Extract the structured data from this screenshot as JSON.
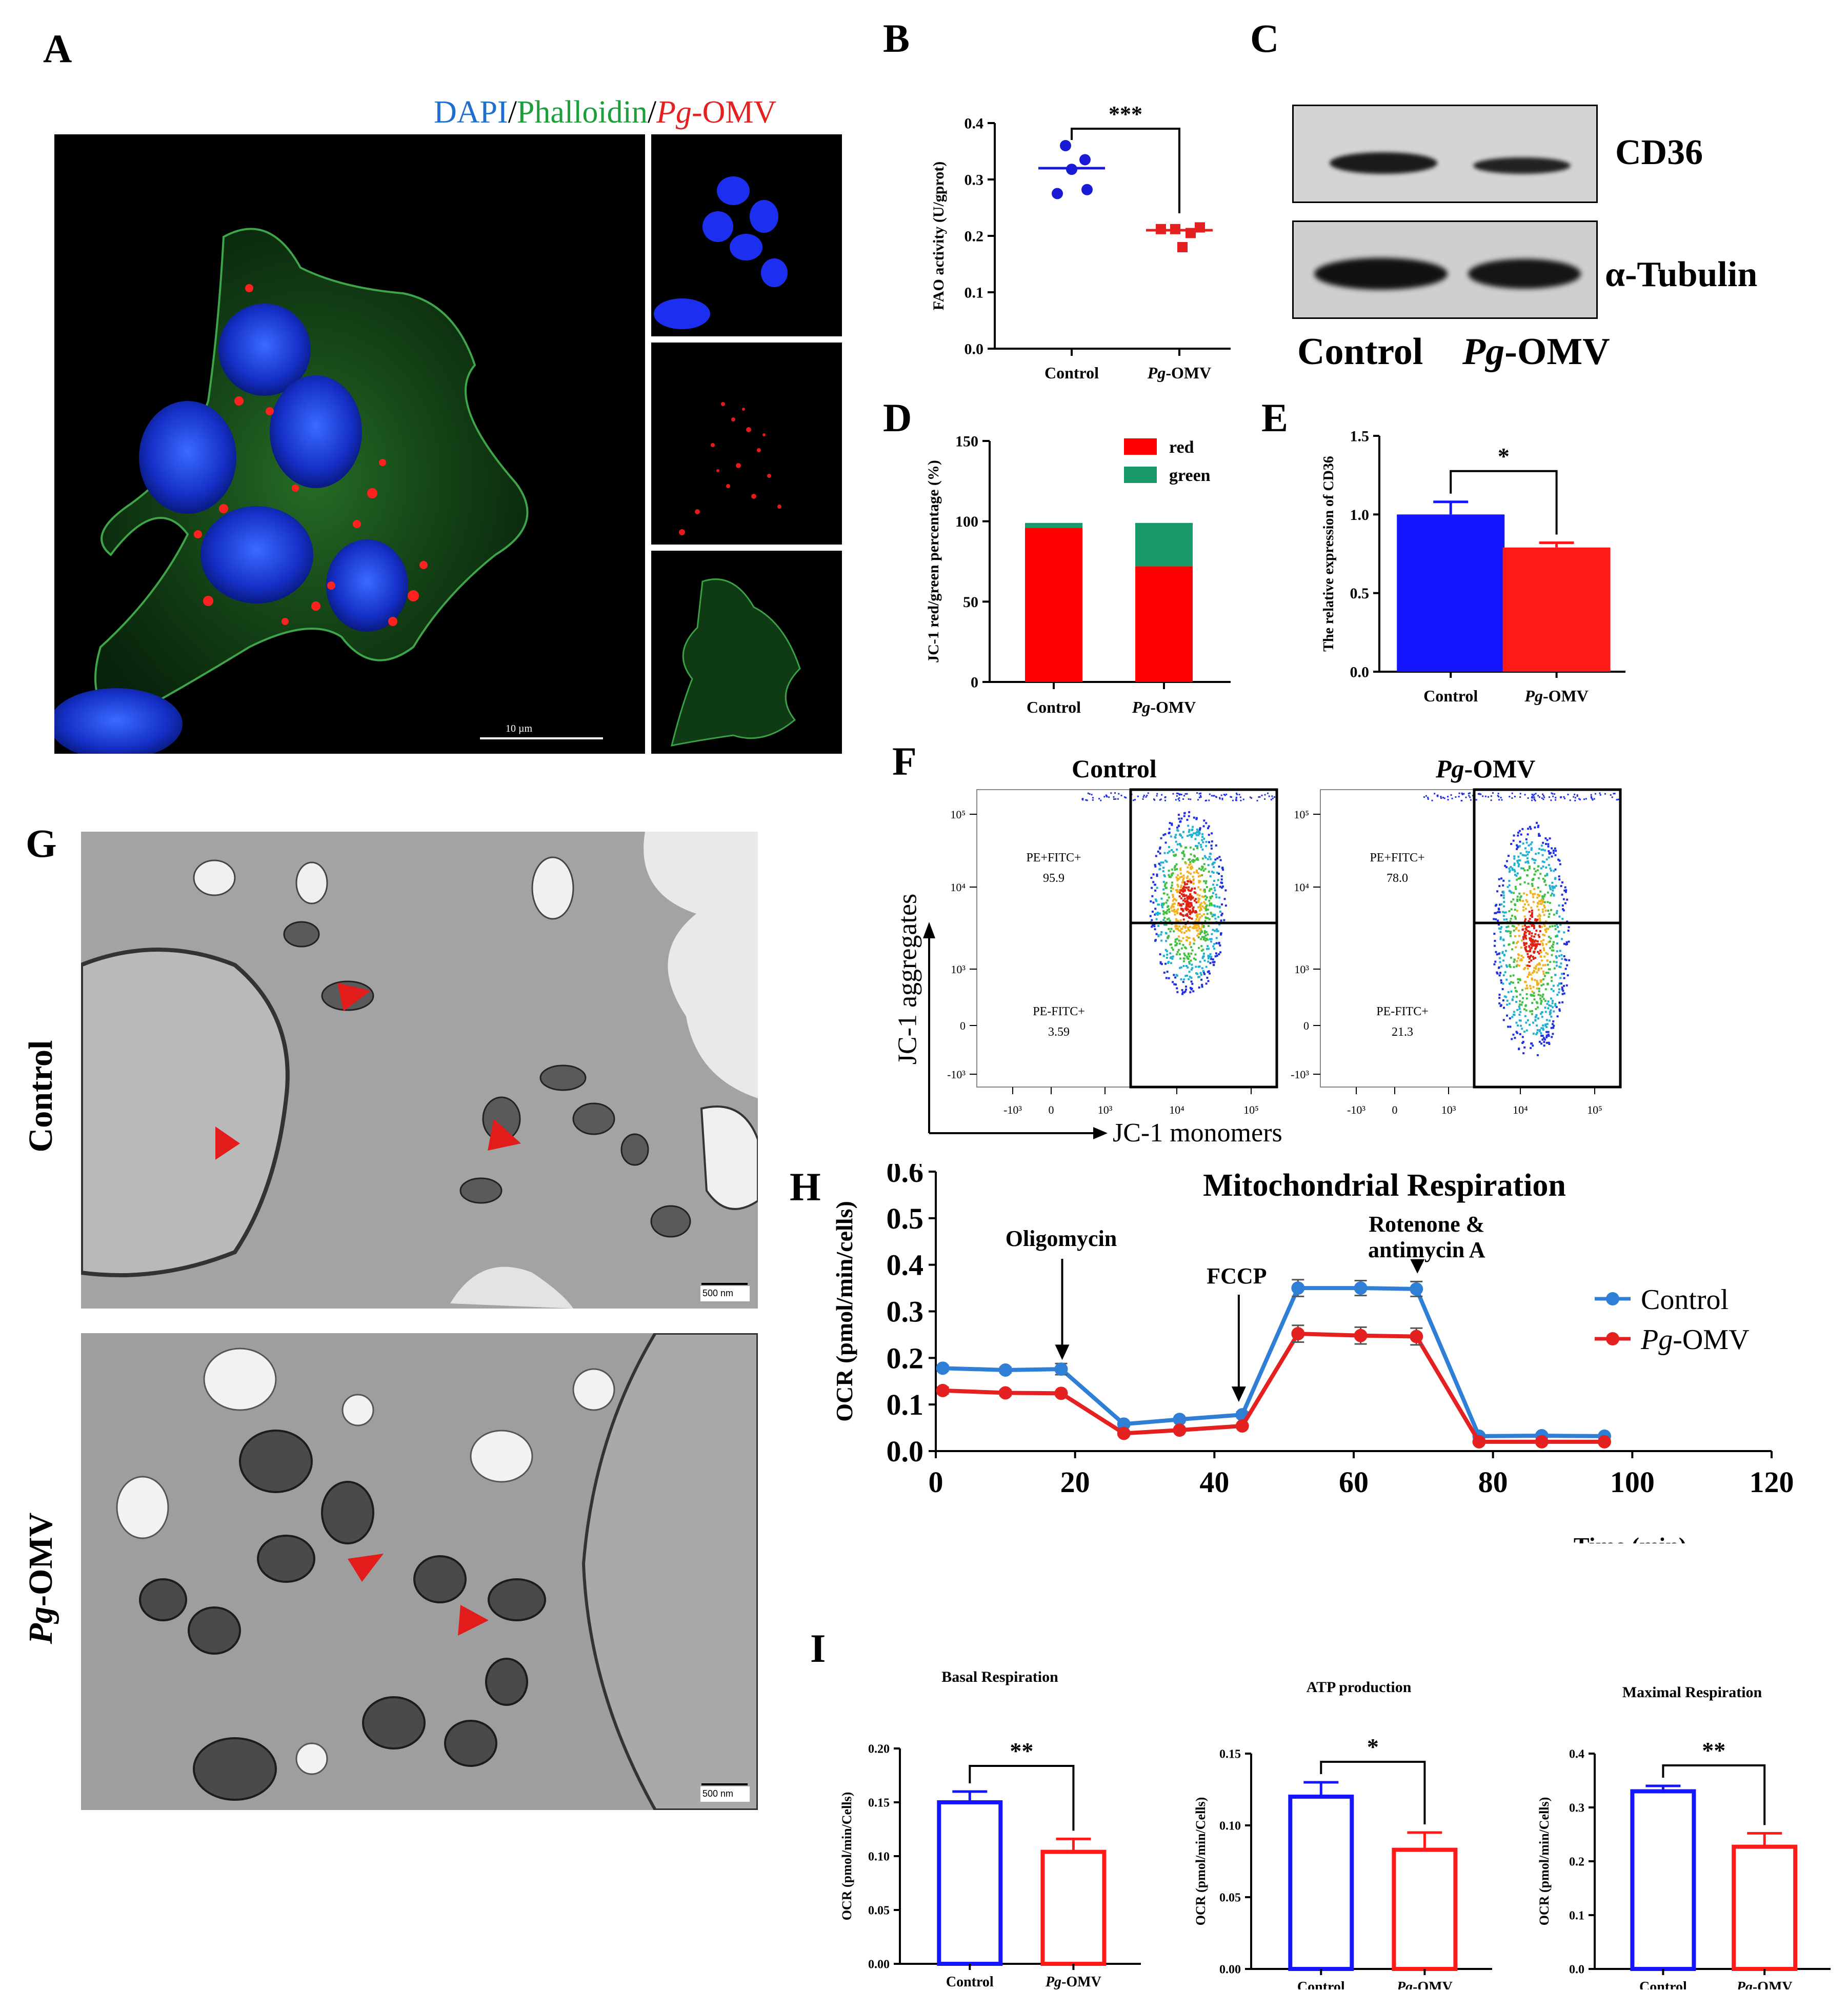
{
  "panels": {
    "A": {
      "label": "A",
      "legend_dapi": "DAPI",
      "legend_sep1": "/",
      "legend_phalloidin": "Phalloidin",
      "legend_sep2": "/",
      "legend_pg": "Pg",
      "legend_omv": "-OMV",
      "scale_bar": "10 µm",
      "colors": {
        "dapi": "#1f6fd1",
        "phalloidin": "#1e9e3a",
        "omv": "#e52020"
      }
    },
    "B": {
      "label": "B"
    },
    "C": {
      "label": "C",
      "band1": "CD36",
      "band2": "α-Tubulin",
      "lane1": "Control",
      "lane2_italic": "Pg",
      "lane2_rest": "-OMV"
    },
    "D": {
      "label": "D"
    },
    "E": {
      "label": "E"
    },
    "F": {
      "label": "F",
      "title_control": "Control",
      "title_pg_italic": "Pg",
      "title_pg_rest": "-OMV",
      "y_axis": "JC-1 aggregates",
      "x_axis": "JC-1 monomers",
      "gate_top": "PE+FITC+",
      "gate_bottom": "PE-FITC+",
      "control_top_value": "95.9",
      "control_bottom_value": "3.59",
      "pg_top_value": "78.0",
      "pg_bottom_value": "21.3",
      "y_ticks": [
        "10⁵",
        "10⁴",
        "10³",
        "0",
        "-10³"
      ],
      "x_ticks": [
        "-10³",
        "0",
        "10³",
        "10⁴",
        "10⁵"
      ]
    },
    "G": {
      "label": "G",
      "row1": "Control",
      "row2_italic": "Pg",
      "row2_rest": "-OMV",
      "scale_bar": "500 nm"
    },
    "H": {
      "label": "H"
    },
    "I": {
      "label": "I"
    }
  },
  "chart_data": [
    {
      "id": "B",
      "type": "scatter",
      "ylabel": "FAO activity (U/gprot)",
      "categories": [
        "Control",
        "Pg-OMV"
      ],
      "ylim": [
        0,
        0.4
      ],
      "yticks": [
        "0.0",
        "0.1",
        "0.2",
        "0.3",
        "0.4"
      ],
      "series": [
        {
          "name": "Control",
          "color": "#1a1ad6",
          "values": [
            0.36,
            0.335,
            0.318,
            0.275,
            0.282
          ],
          "mean": 0.32
        },
        {
          "name": "Pg-OMV",
          "color": "#e52020",
          "values": [
            0.212,
            0.212,
            0.205,
            0.215,
            0.18
          ],
          "mean": 0.21
        }
      ],
      "significance": "***"
    },
    {
      "id": "D",
      "type": "bar",
      "stacked": true,
      "ylabel": "JC-1 red/green percentage (%)",
      "categories": [
        "Control",
        "Pg-OMV"
      ],
      "ylim": [
        0,
        150
      ],
      "yticks": [
        "0",
        "50",
        "100",
        "150"
      ],
      "series": [
        {
          "name": "red",
          "color": "#ff0000",
          "values": [
            96,
            72
          ]
        },
        {
          "name": "green",
          "color": "#1a9a6a",
          "values": [
            3,
            27
          ]
        }
      ],
      "legend": "top-right"
    },
    {
      "id": "E",
      "type": "bar",
      "ylabel": "The relative expression of CD36",
      "categories": [
        "Control",
        "Pg-OMV"
      ],
      "ylim": [
        0,
        1.5
      ],
      "yticks": [
        "0.0",
        "0.5",
        "1.0",
        "1.5"
      ],
      "values": [
        1.0,
        0.79
      ],
      "errors": [
        0.08,
        0.03
      ],
      "colors": [
        "#1515ff",
        "#ff1a1a"
      ],
      "significance": "*"
    },
    {
      "id": "H",
      "type": "line",
      "title": "Mitochondrial Respiration",
      "ylabel": "OCR (pmol/min/cells)",
      "xlabel": "Time (min)",
      "xlim": [
        0,
        120
      ],
      "ylim": [
        0,
        0.6
      ],
      "xticks": [
        "0",
        "20",
        "40",
        "60",
        "80",
        "100",
        "120"
      ],
      "yticks": [
        "0.0",
        "0.1",
        "0.2",
        "0.3",
        "0.4",
        "0.5",
        "0.6"
      ],
      "x": [
        1,
        10,
        18,
        27,
        35,
        44,
        52,
        61,
        69,
        78,
        87,
        96
      ],
      "series": [
        {
          "name": "Control",
          "color": "#2f7fd6",
          "values": [
            0.178,
            0.174,
            0.176,
            0.058,
            0.068,
            0.078,
            0.35,
            0.35,
            0.348,
            0.032,
            0.033,
            0.032
          ],
          "errors": [
            0.006,
            0.006,
            0.012,
            0.004,
            0.004,
            0.006,
            0.018,
            0.016,
            0.016,
            0.004,
            0.004,
            0.004
          ]
        },
        {
          "name": "Pg-OMV",
          "color": "#e52020",
          "values": [
            0.13,
            0.125,
            0.124,
            0.038,
            0.045,
            0.054,
            0.252,
            0.248,
            0.246,
            0.02,
            0.02,
            0.02
          ],
          "errors": [
            0.007,
            0.006,
            0.005,
            0.004,
            0.004,
            0.004,
            0.018,
            0.018,
            0.018,
            0.004,
            0.003,
            0.003
          ]
        }
      ],
      "annotations": [
        {
          "text": "Oligomycin",
          "x": 18
        },
        {
          "text": "FCCP",
          "x": 43.5
        },
        {
          "text": "Rotenone &",
          "text2": "antimycin A",
          "x": 69
        }
      ],
      "legend": "right"
    },
    {
      "id": "I1",
      "type": "bar",
      "title": "Basal Respiration",
      "ylabel": "OCR (pmol/min/Cells)",
      "categories": [
        "Control",
        "Pg-OMV"
      ],
      "ylim": [
        0,
        0.2
      ],
      "yticks": [
        "0.00",
        "0.05",
        "0.10",
        "0.15",
        "0.20"
      ],
      "values": [
        0.15,
        0.104
      ],
      "errors": [
        0.01,
        0.012
      ],
      "colors": [
        "#1515ff",
        "#ff1a1a"
      ],
      "significance": "**"
    },
    {
      "id": "I2",
      "type": "bar",
      "title": "ATP production",
      "ylabel": "OCR (pmol/min/Cells)",
      "categories": [
        "Control",
        "Pg-OMV"
      ],
      "ylim": [
        0,
        0.15
      ],
      "yticks": [
        "0.00",
        "0.05",
        "0.10",
        "0.15"
      ],
      "values": [
        0.12,
        0.083
      ],
      "errors": [
        0.01,
        0.012
      ],
      "colors": [
        "#1515ff",
        "#ff1a1a"
      ],
      "significance": "*"
    },
    {
      "id": "I3",
      "type": "bar",
      "title": "Maximal Respiration",
      "ylabel": "OCR (pmol/min/Cells)",
      "categories": [
        "Control",
        "Pg-OMV"
      ],
      "ylim": [
        0,
        0.4
      ],
      "yticks": [
        "0.0",
        "0.1",
        "0.2",
        "0.3",
        "0.4"
      ],
      "values": [
        0.33,
        0.227
      ],
      "errors": [
        0.01,
        0.025
      ],
      "colors": [
        "#1515ff",
        "#ff1a1a"
      ],
      "significance": "**"
    }
  ]
}
